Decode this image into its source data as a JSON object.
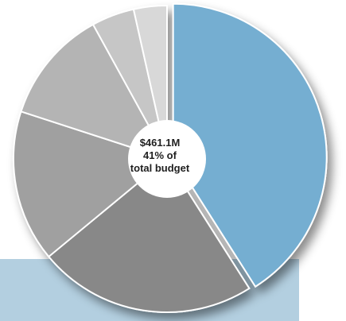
{
  "chart_data": {
    "type": "pie",
    "title": "",
    "center_text": [
      "$461.1M",
      "41% of",
      "total budget"
    ],
    "slices": [
      {
        "value": 41,
        "color": "#74aed1",
        "highlighted": true
      },
      {
        "value": 23,
        "color": "#888888"
      },
      {
        "value": 16,
        "color": "#a0a0a0"
      },
      {
        "value": 12,
        "color": "#b4b4b4"
      },
      {
        "value": 4.5,
        "color": "#c6c6c6"
      },
      {
        "value": 3.5,
        "color": "#d8d8d8"
      }
    ]
  },
  "colors": {
    "accent": "#74aed1",
    "band": "#b3cfe0",
    "separator": "#ffffff"
  }
}
